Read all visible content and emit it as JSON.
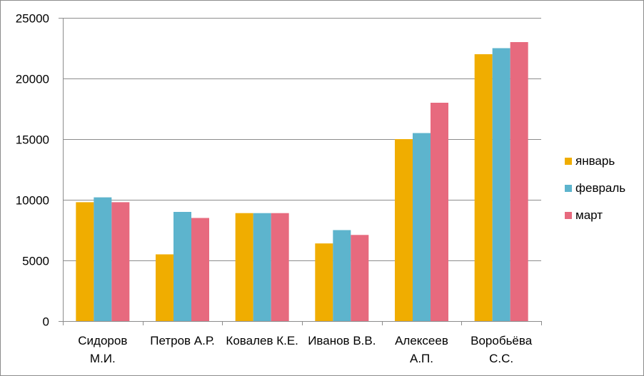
{
  "chart_data": {
    "type": "bar",
    "categories": [
      [
        "Сидоров",
        "М.И."
      ],
      [
        "Петров А.Р."
      ],
      [
        "Ковалев К.Е."
      ],
      [
        "Иванов В.В."
      ],
      [
        "Алексеев",
        "А.П."
      ],
      [
        "Воробьёва",
        "С.С."
      ]
    ],
    "series": [
      {
        "name": "январь",
        "color": "#F0AD00",
        "values": [
          9800,
          5500,
          8900,
          6400,
          15000,
          22000
        ]
      },
      {
        "name": "февраль",
        "color": "#5DB4CD",
        "values": [
          10200,
          9000,
          8900,
          7500,
          15500,
          22500
        ]
      },
      {
        "name": "март",
        "color": "#E76A7E",
        "values": [
          9800,
          8500,
          8900,
          7100,
          18000,
          23000
        ]
      }
    ],
    "ylim": [
      0,
      25000
    ],
    "yticks": [
      0,
      5000,
      10000,
      15000,
      20000,
      25000
    ],
    "grid": true,
    "legend": "right",
    "title": "",
    "xlabel": "",
    "ylabel": ""
  }
}
